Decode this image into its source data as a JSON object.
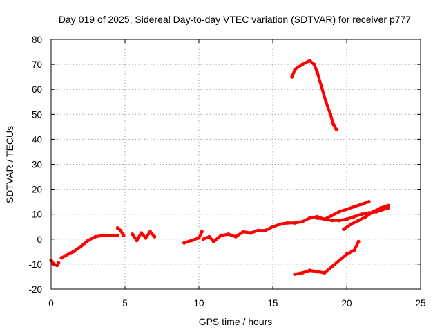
{
  "chart_data": {
    "type": "scatter",
    "title": "Day 019 of 2025, Sidereal Day-to-day VTEC variation (SDTVAR) for receiver p777",
    "xlabel": "GPS time / hours",
    "ylabel": "SDTVAR / TECUs",
    "xlim": [
      0,
      25
    ],
    "ylim": [
      -20,
      80
    ],
    "xticks": [
      0,
      5,
      10,
      15,
      20,
      25
    ],
    "yticks": [
      -20,
      -10,
      0,
      10,
      20,
      30,
      40,
      50,
      60,
      70,
      80
    ],
    "grid": true,
    "legend": "none",
    "color": "#ff0000",
    "series": [
      {
        "x": [
          0.0,
          0.2,
          0.4,
          0.5
        ],
        "y": [
          -8.5,
          -10,
          -10.5,
          -9.5
        ]
      },
      {
        "x": [
          0.7,
          1.0,
          1.5,
          2.0,
          2.5,
          3.0,
          3.5,
          4.0,
          4.5
        ],
        "y": [
          -7.5,
          -6.5,
          -5,
          -3,
          -0.5,
          1,
          1.5,
          1.5,
          1.5
        ]
      },
      {
        "x": [
          4.5,
          4.7,
          4.9
        ],
        "y": [
          4.5,
          3.5,
          1.5
        ]
      },
      {
        "x": [
          5.5,
          5.8,
          6.1,
          6.4,
          6.7,
          7.0
        ],
        "y": [
          2.0,
          -0.5,
          2.5,
          0.5,
          3.0,
          1.0
        ]
      },
      {
        "x": [
          9.0,
          9.5,
          10.0,
          10.2
        ],
        "y": [
          -1.5,
          -0.5,
          0.5,
          3.0
        ]
      },
      {
        "x": [
          10.3,
          10.7,
          11.0,
          11.5,
          12.0,
          12.5,
          13.0,
          13.5
        ],
        "y": [
          0.0,
          1.0,
          -1.0,
          1.5,
          2.0,
          1.0,
          3.0,
          2.5
        ]
      },
      {
        "x": [
          13.5,
          14.0,
          14.5,
          15.0,
          15.5,
          16.0,
          16.5,
          17.0,
          17.5,
          18.0,
          18.5,
          19.0,
          19.5,
          20.0
        ],
        "y": [
          2.5,
          3.5,
          3.5,
          5,
          6,
          6.5,
          6.5,
          7,
          8.5,
          9,
          8,
          7.5,
          7.5,
          8
        ]
      },
      {
        "x": [
          18.0,
          18.5,
          19.0,
          19.5,
          20.0,
          20.5,
          21.0,
          21.5
        ],
        "y": [
          8.5,
          8,
          9.5,
          11,
          12,
          13,
          14,
          15
        ]
      },
      {
        "x": [
          19.8,
          20.3,
          20.8,
          21.3,
          21.8,
          22.3,
          22.8
        ],
        "y": [
          4,
          6,
          7.5,
          9,
          11,
          12.5,
          13.5
        ]
      },
      {
        "x": [
          19.5,
          20.0,
          20.5,
          21.0,
          21.5,
          22.0,
          22.3,
          22.8
        ],
        "y": [
          7.5,
          8,
          9,
          10,
          10.5,
          11,
          11.5,
          12.5
        ]
      },
      {
        "x": [
          16.3,
          16.5,
          17.0,
          17.5,
          17.8,
          18.0,
          18.3,
          18.6,
          18.9,
          19.1,
          19.3
        ],
        "y": [
          65,
          68,
          70,
          71.5,
          70,
          67,
          61,
          55,
          50,
          46,
          44
        ]
      },
      {
        "x": [
          16.5,
          17.0,
          17.5,
          18.0,
          18.5,
          19.0,
          19.5,
          20.0,
          20.5,
          20.8
        ],
        "y": [
          -14,
          -13.5,
          -12.5,
          -13,
          -13.5,
          -11,
          -8.5,
          -6,
          -4.5,
          -1
        ]
      }
    ]
  }
}
